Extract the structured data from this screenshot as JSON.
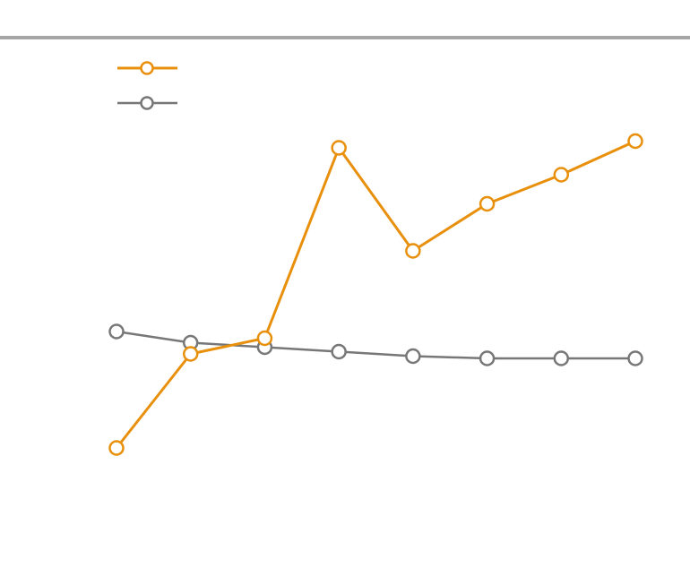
{
  "colors": {
    "series_a": "#E8900C",
    "series_b": "#777777",
    "top_rule": "#A6A6A6"
  },
  "chart_data": {
    "type": "line",
    "title": "",
    "xlabel": "",
    "ylabel": "",
    "x": [
      1,
      2,
      3,
      4,
      5,
      6,
      7,
      8
    ],
    "ylim": [
      0,
      100
    ],
    "grid": false,
    "legend": "top-left",
    "series": [
      {
        "values": [
          24,
          45,
          48.5,
          91,
          68,
          78.5,
          85,
          92.5
        ],
        "color": "#E8900C",
        "marker": "hollow-circle"
      },
      {
        "values": [
          50,
          47.5,
          46.5,
          45.5,
          44.5,
          44,
          44,
          44
        ],
        "color": "#777777",
        "marker": "hollow-circle"
      }
    ]
  }
}
